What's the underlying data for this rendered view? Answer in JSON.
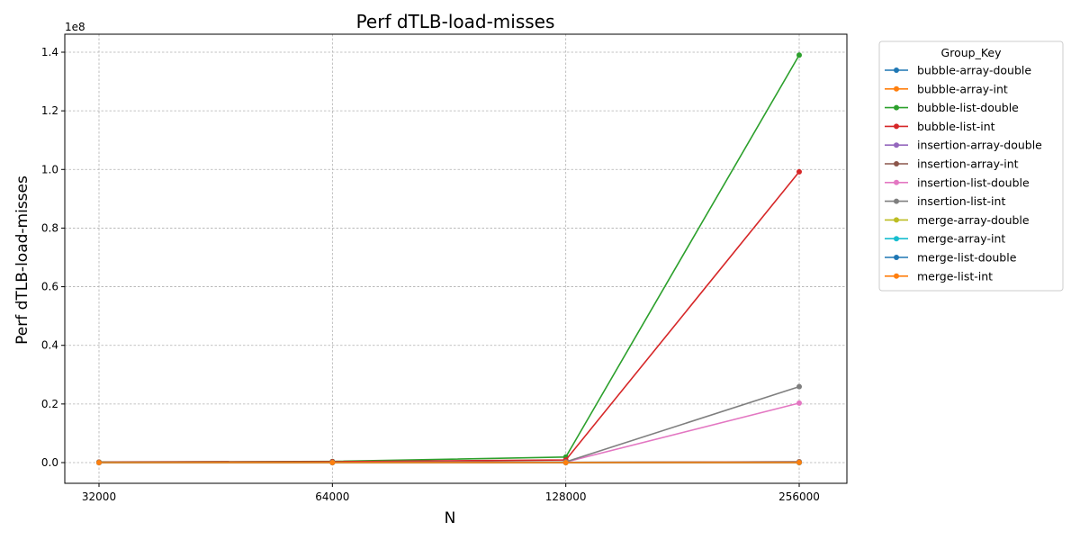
{
  "chart_data": {
    "type": "line",
    "title": "Perf dTLB-load-misses",
    "xlabel": "N",
    "ylabel": "Perf dTLB-load-misses",
    "y_scale_label": "1e8",
    "x": [
      32000,
      64000,
      128000,
      256000
    ],
    "x_tick_labels": [
      "32000",
      "64000",
      "128000",
      "256000"
    ],
    "x_scale": "log2",
    "y_ticks": [
      0,
      20000000,
      40000000,
      60000000,
      80000000,
      100000000,
      120000000,
      140000000
    ],
    "y_tick_labels": [
      "0.0",
      "0.2",
      "0.4",
      "0.6",
      "0.8",
      "1.0",
      "1.2",
      "1.4"
    ],
    "ylim": [
      -7000000,
      146000000
    ],
    "grid": true,
    "legend_title": "Group_Key",
    "legend_position": "outside-right",
    "series": [
      {
        "name": "bubble-array-double",
        "color": "#1f77b4",
        "values": [
          5000,
          20000,
          80000,
          300000
        ]
      },
      {
        "name": "bubble-array-int",
        "color": "#ff7f0e",
        "values": [
          4000,
          15000,
          60000,
          250000
        ]
      },
      {
        "name": "bubble-list-double",
        "color": "#2ca02c",
        "values": [
          200000,
          400000,
          1900000,
          139000000
        ]
      },
      {
        "name": "bubble-list-int",
        "color": "#d62728",
        "values": [
          150000,
          300000,
          900000,
          99200000
        ]
      },
      {
        "name": "insertion-array-double",
        "color": "#9467bd",
        "values": [
          3000,
          10000,
          40000,
          150000
        ]
      },
      {
        "name": "insertion-array-int",
        "color": "#8c564b",
        "values": [
          2500,
          9000,
          35000,
          130000
        ]
      },
      {
        "name": "insertion-list-double",
        "color": "#e377c2",
        "values": [
          20000,
          50000,
          200000,
          20300000
        ]
      },
      {
        "name": "insertion-list-int",
        "color": "#7f7f7f",
        "values": [
          25000,
          60000,
          250000,
          25900000
        ]
      },
      {
        "name": "merge-array-double",
        "color": "#bcbd22",
        "values": [
          1000,
          2000,
          4000,
          8000
        ]
      },
      {
        "name": "merge-array-int",
        "color": "#17becf",
        "values": [
          1000,
          2000,
          4000,
          8000
        ]
      },
      {
        "name": "merge-list-double",
        "color": "#1f77b4",
        "values": [
          3000,
          6000,
          12000,
          25000
        ]
      },
      {
        "name": "merge-list-int",
        "color": "#ff7f0e",
        "values": [
          3000,
          6000,
          12000,
          25000
        ]
      }
    ]
  }
}
